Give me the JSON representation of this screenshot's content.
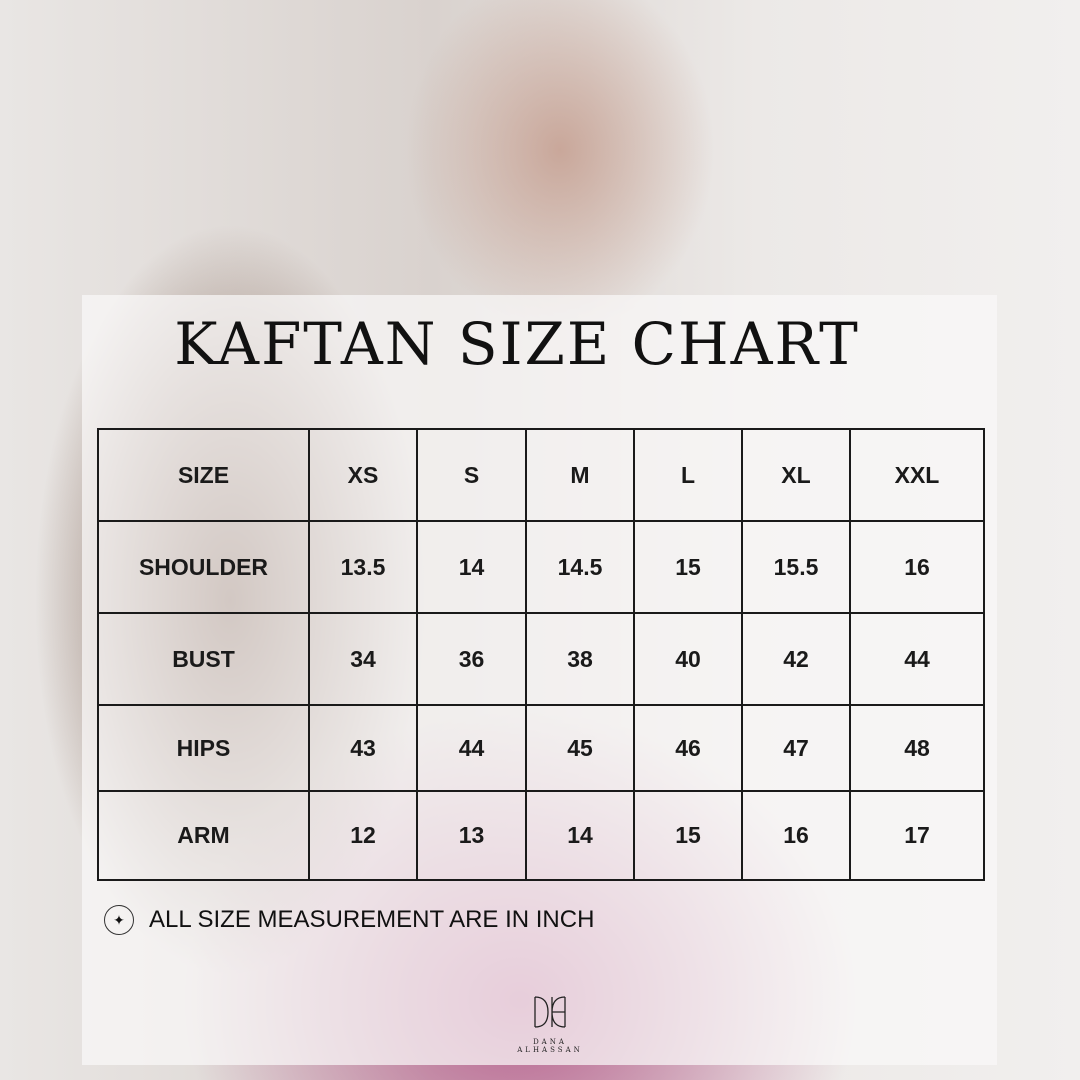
{
  "title": "KAFTAN SIZE CHART",
  "table": {
    "header": [
      "SIZE",
      "XS",
      "S",
      "M",
      "L",
      "XL",
      "XXL"
    ],
    "rows": [
      [
        "SHOULDER",
        "13.5",
        "14",
        "14.5",
        "15",
        "15.5",
        "16"
      ],
      [
        "BUST",
        "34",
        "36",
        "38",
        "40",
        "42",
        "44"
      ],
      [
        "HIPS",
        "43",
        "44",
        "45",
        "46",
        "47",
        "48"
      ],
      [
        "ARM",
        "12",
        "13",
        "14",
        "15",
        "16",
        "17"
      ]
    ]
  },
  "note": {
    "icon": "sparkle-icon",
    "text": "ALL SIZE MEASUREMENT ARE IN INCH"
  },
  "logo": {
    "monogram": "DH",
    "brand": "DANA ALHASSAN"
  }
}
